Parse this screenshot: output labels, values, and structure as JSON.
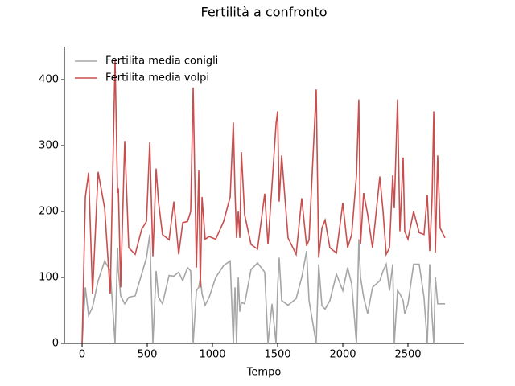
{
  "chart_data": {
    "type": "line",
    "title": "Fertilità a confronto",
    "x_label": "Tempo",
    "x": [
      0,
      25,
      50,
      80,
      123,
      173,
      216,
      253,
      272,
      278,
      296,
      327,
      358,
      407,
      457,
      494,
      519,
      543,
      568,
      586,
      617,
      667,
      704,
      741,
      772,
      809,
      833,
      852,
      877,
      895,
      907,
      920,
      944,
      975,
      1025,
      1086,
      1136,
      1160,
      1173,
      1185,
      1198,
      1210,
      1222,
      1247,
      1296,
      1346,
      1401,
      1426,
      1457,
      1488,
      1500,
      1512,
      1531,
      1580,
      1642,
      1685,
      1722,
      1741,
      1796,
      1815,
      1840,
      1864,
      1901,
      1951,
      2000,
      2037,
      2068,
      2105,
      2123,
      2136,
      2160,
      2191,
      2228,
      2284,
      2309,
      2333,
      2358,
      2383,
      2395,
      2420,
      2438,
      2463,
      2475,
      2500,
      2543,
      2586,
      2623,
      2648,
      2667,
      2685,
      2698,
      2710,
      2728,
      2747,
      2784
    ],
    "series": [
      {
        "name": "Fertilita media conigli",
        "color": "#a6a6a6",
        "values": [
          0,
          85,
          42,
          55,
          95,
          125,
          110,
          0,
          145,
          110,
          72,
          60,
          70,
          72,
          105,
          130,
          165,
          0,
          110,
          70,
          60,
          103,
          102,
          108,
          95,
          115,
          110,
          0,
          80,
          85,
          100,
          75,
          58,
          70,
          100,
          118,
          125,
          0,
          85,
          0,
          100,
          48,
          62,
          60,
          112,
          122,
          108,
          0,
          60,
          0,
          85,
          130,
          65,
          58,
          68,
          100,
          140,
          65,
          0,
          120,
          57,
          52,
          65,
          105,
          80,
          115,
          90,
          0,
          158,
          100,
          70,
          45,
          85,
          95,
          110,
          120,
          80,
          120,
          0,
          80,
          75,
          65,
          45,
          60,
          120,
          120,
          70,
          0,
          120,
          40,
          0,
          100,
          60,
          60,
          60
        ]
      },
      {
        "name": "Fertilita media volpi",
        "color": "#c94f4f",
        "values": [
          0,
          222,
          259,
          75,
          260,
          205,
          75,
          430,
          228,
          235,
          85,
          307,
          145,
          135,
          173,
          185,
          305,
          132,
          265,
          215,
          165,
          157,
          215,
          135,
          183,
          185,
          200,
          388,
          115,
          262,
          85,
          222,
          158,
          162,
          158,
          185,
          222,
          335,
          230,
          160,
          200,
          160,
          290,
          195,
          150,
          143,
          227,
          150,
          240,
          333,
          352,
          215,
          285,
          160,
          135,
          220,
          148,
          157,
          385,
          130,
          175,
          187,
          145,
          137,
          213,
          145,
          165,
          255,
          370,
          150,
          228,
          195,
          145,
          253,
          200,
          135,
          145,
          255,
          205,
          370,
          170,
          282,
          170,
          158,
          200,
          168,
          165,
          225,
          140,
          220,
          352,
          138,
          285,
          175,
          160
        ]
      }
    ],
    "xlim": [
      -136,
      2926
    ],
    "ylim": [
      0,
      450
    ],
    "xticks": [
      0,
      500,
      1000,
      1500,
      2000,
      2500
    ],
    "yticks": [
      0,
      100,
      200,
      300,
      400
    ],
    "legend": "upper left",
    "grid": false
  }
}
